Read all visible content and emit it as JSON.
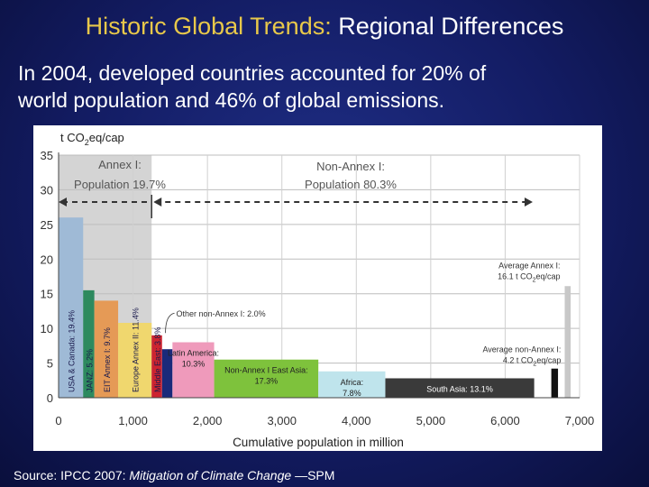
{
  "slide": {
    "title_part1": "Historic Global Trends:",
    "title_part2": "Regional Differences",
    "body_line1": "In 2004, developed countries accounted for 20% of",
    "body_line2": "world population and 46% of global emissions.",
    "source_prefix": "Source:",
    "source_org": "IPCC 2007:",
    "source_title": "Mitigation of Climate Change",
    "source_suffix": "—SPM",
    "colors": {
      "background": "#131c63",
      "title_accent": "#e8c84a",
      "text": "#ffffff"
    }
  },
  "chart_data": {
    "type": "bar",
    "subtype": "variable-width bars (width = population, height = emissions per capita)",
    "ylabel_main": "t CO",
    "ylabel_sub": "2",
    "ylabel_rest": "eq/cap",
    "xlabel": "Cumulative population in million",
    "ylim": [
      0,
      35
    ],
    "xlim": [
      0,
      7000
    ],
    "yticks": [
      0,
      5,
      10,
      15,
      20,
      25,
      30,
      35
    ],
    "xticks": [
      0,
      1000,
      2000,
      3000,
      4000,
      5000,
      6000,
      7000
    ],
    "xtick_labels": [
      "0",
      "1,000",
      "2,000",
      "3,000",
      "4,000",
      "5,000",
      "6,000",
      "7,000"
    ],
    "grid": true,
    "bars": [
      {
        "label": "USA & Canada: 19.4%",
        "x0": 0,
        "x1": 330,
        "value": 26,
        "color": "#9fbad6",
        "label_rot": true,
        "label_color": "#1a1a4d"
      },
      {
        "label": "JANZ: 5.2%",
        "x0": 330,
        "x1": 480,
        "value": 15.5,
        "color": "#2d8a5f",
        "label_rot": true,
        "label_color": "#1a1a4d"
      },
      {
        "label": "EIT Annex I: 9.7%",
        "x0": 480,
        "x1": 800,
        "value": 14,
        "color": "#e59a56",
        "label_rot": true,
        "label_color": "#1a1a4d"
      },
      {
        "label": "Europe Annex II: 11.4%",
        "x0": 800,
        "x1": 1250,
        "value": 10.8,
        "color": "#f0d76e",
        "label_rot": true,
        "label_color": "#1a1a4d"
      },
      {
        "label": "Middle East: 3.8%",
        "x0": 1250,
        "x1": 1390,
        "value": 9,
        "color": "#cc2430",
        "label_rot": true,
        "label_color": "#1a1a4d"
      },
      {
        "label": "",
        "x0": 1390,
        "x1": 1530,
        "value": 7,
        "color": "#1a2a7a",
        "label_rot": false
      },
      {
        "label": "Latin America: 10.3%",
        "x0": 1530,
        "x1": 2090,
        "value": 8,
        "color": "#ef9abb",
        "label_rot": false
      },
      {
        "label": "Non-Annex I East Asia: 17.3%",
        "x0": 2090,
        "x1": 3490,
        "value": 5.5,
        "color": "#7ec23c",
        "label_rot": false
      },
      {
        "label": "Africa: 7.8%",
        "x0": 3490,
        "x1": 4390,
        "value": 3.8,
        "color": "#bfe4ec",
        "label_rot": false
      },
      {
        "label": "South Asia: 13.1%",
        "x0": 4390,
        "x1": 6390,
        "value": 2.8,
        "color": "#3a3a3a",
        "label_rot": false,
        "label_color": "#ffffff"
      },
      {
        "label": "",
        "x0": 6620,
        "x1": 6710,
        "value": 4.2,
        "color": "#111111",
        "label_rot": false
      },
      {
        "label": "",
        "x0": 6800,
        "x1": 6880,
        "value": 16.1,
        "color": "#c8c8c8",
        "label_rot": false
      }
    ],
    "annotations": [
      {
        "text": "Other non-Annex I: 2.0%",
        "x": 1460,
        "y": 12.2
      },
      {
        "text_main": "Average Annex I:",
        "text_line2": "16.1 t CO",
        "text_sub": "2",
        "text_rest": "eq/cap",
        "x": 6740,
        "y": 18.7
      },
      {
        "text_main": "Average non-Annex I:",
        "text_line2": "4.2 t CO",
        "text_sub": "2",
        "text_rest": "eq/cap",
        "x": 6750,
        "y": 6.6
      }
    ],
    "regions": {
      "annex1_label": "Annex I:",
      "annex1_pop": "Population 19.7%",
      "non_annex1_label": "Non-Annex I:",
      "non_annex1_pop": "Population 80.3%",
      "annex1_shade_xmax": 1250
    }
  }
}
